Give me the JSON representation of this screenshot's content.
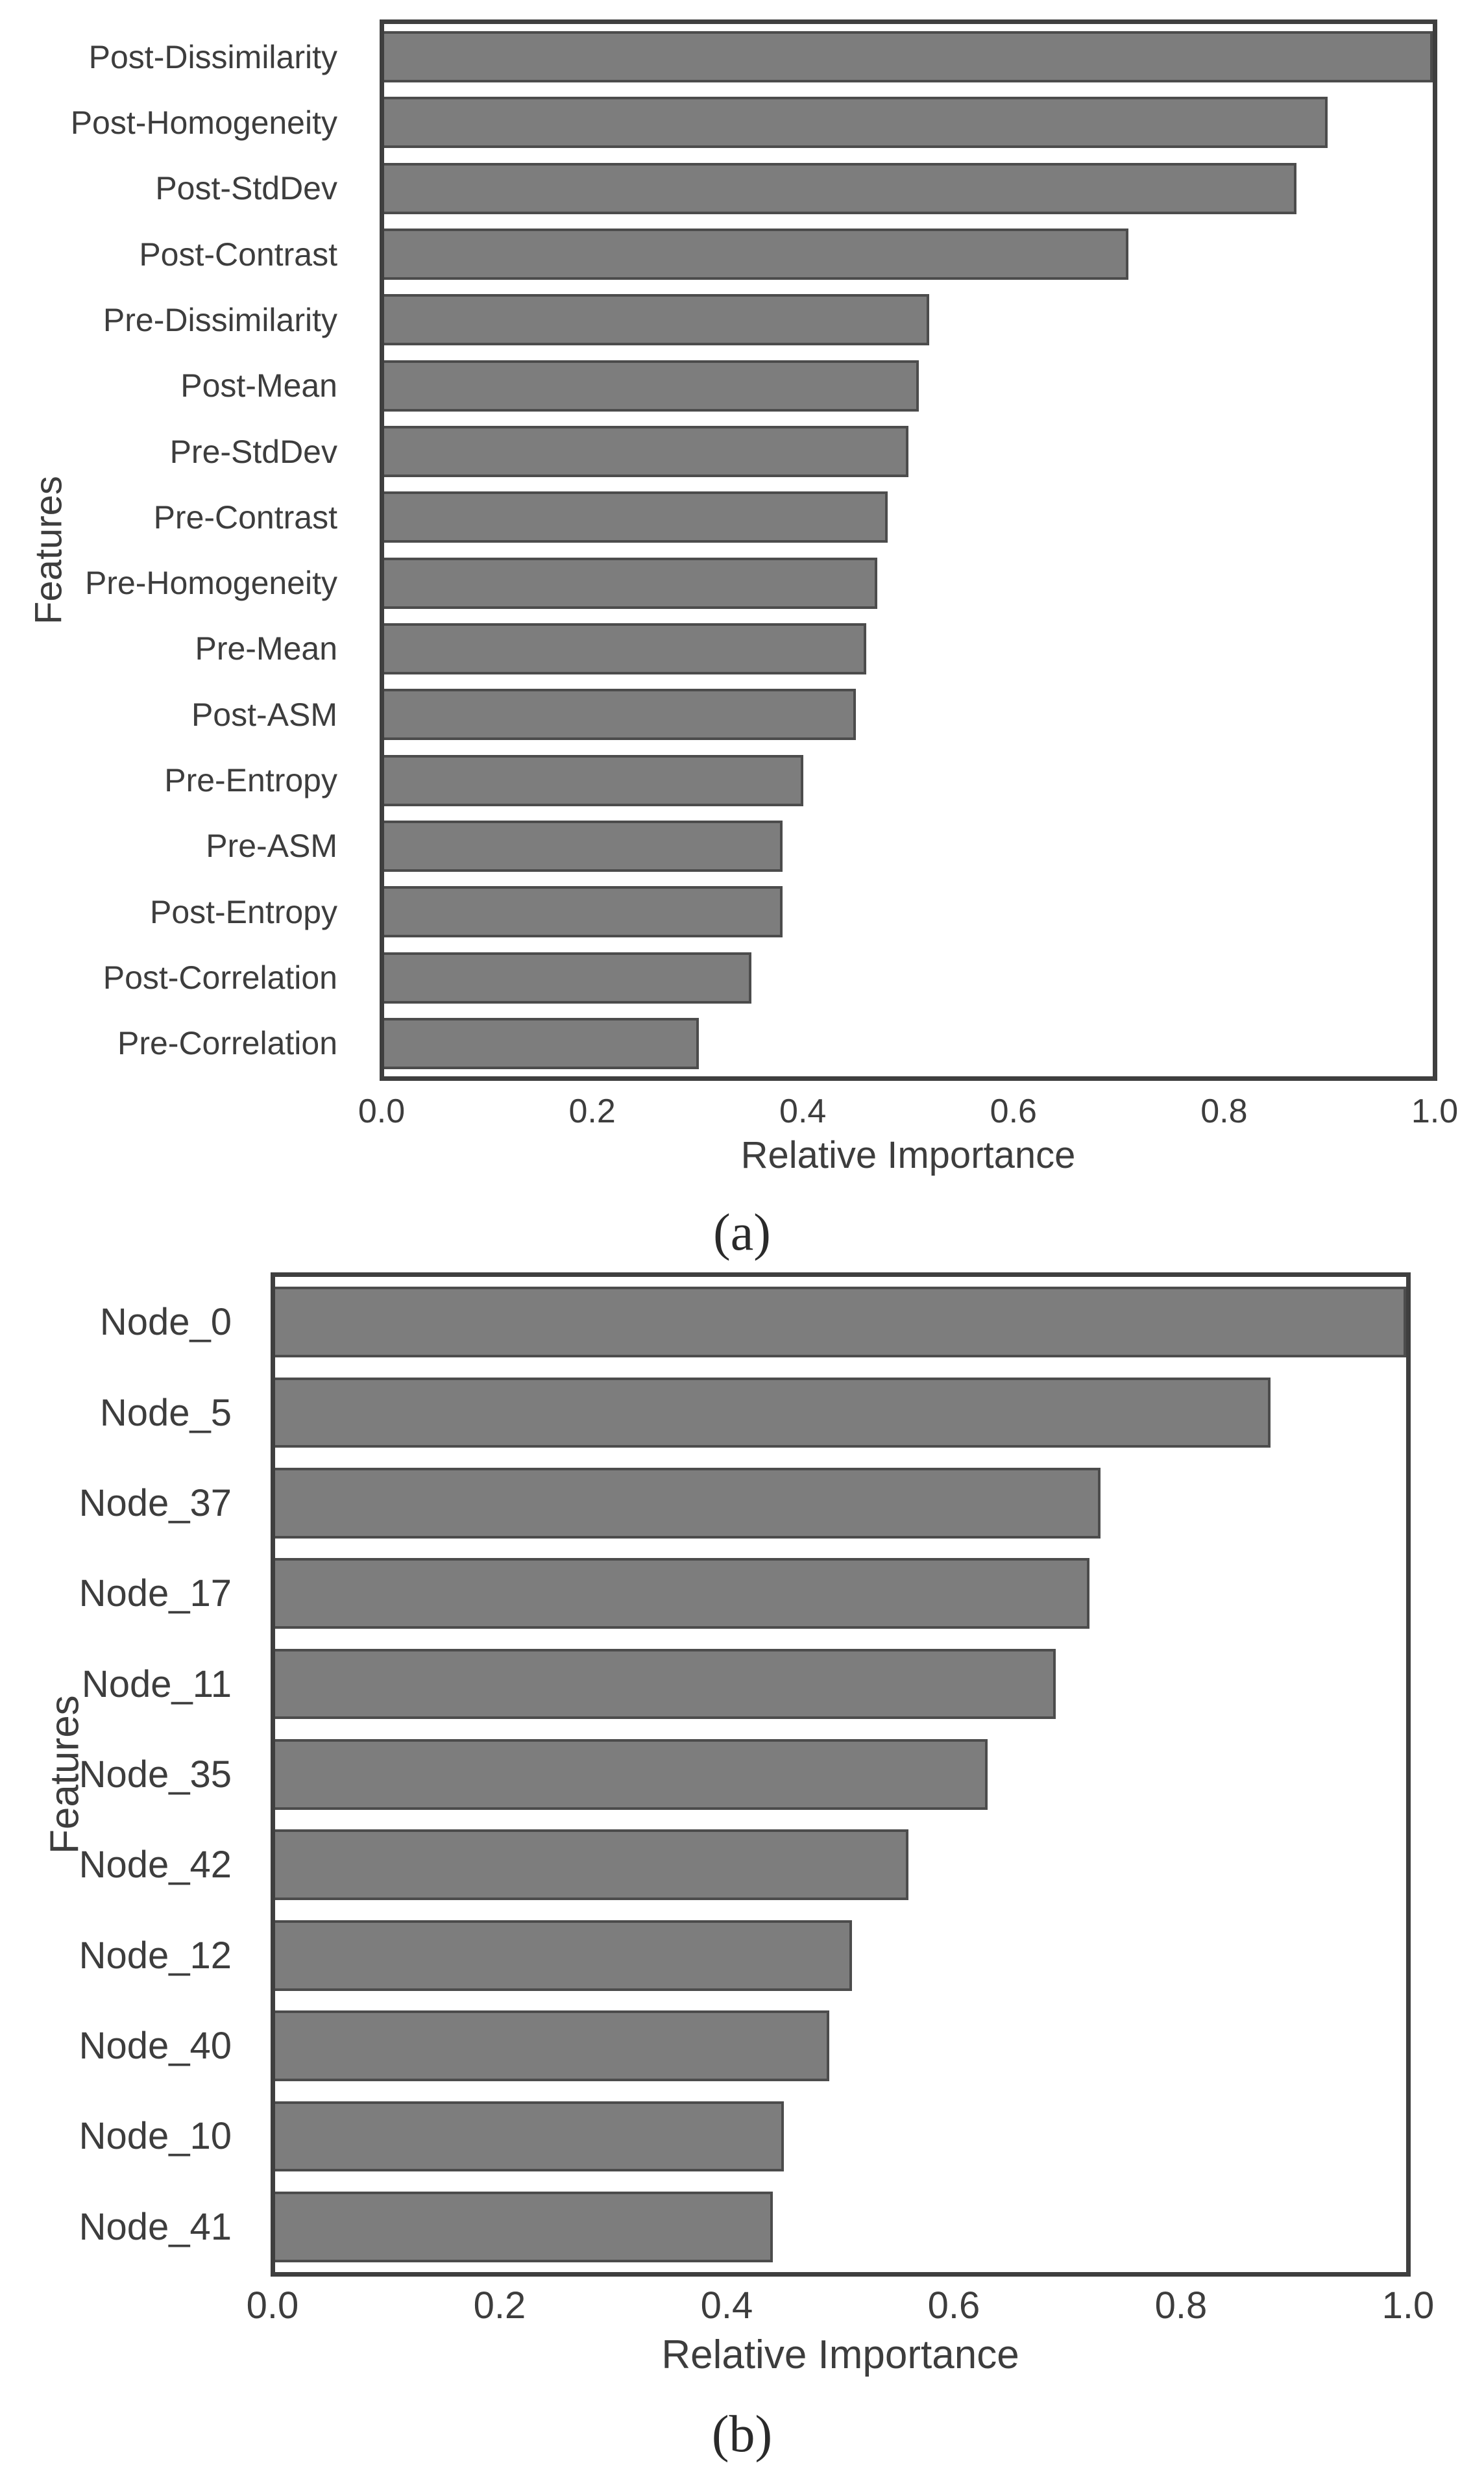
{
  "style": {
    "bar_fill": "#7d7d7d",
    "bar_edge": "#4c4c4c",
    "spine_color": "#3f3f3f",
    "text_color": "#3d3d3d",
    "background": "#ffffff"
  },
  "chart_data": [
    {
      "id": "a",
      "type": "bar",
      "orientation": "horizontal",
      "title": "",
      "xlabel": "Relative Importance",
      "ylabel": "Features",
      "caption": "(a)",
      "xlim": [
        0.0,
        1.0
      ],
      "xtick_labels": [
        "0.0",
        "0.2",
        "0.4",
        "0.6",
        "0.8",
        "1.0"
      ],
      "grid": false,
      "legend_position": "none",
      "categories": [
        "Post-Dissimilarity",
        "Post-Homogeneity",
        "Post-StdDev",
        "Post-Contrast",
        "Pre-Dissimilarity",
        "Post-Mean",
        "Pre-StdDev",
        "Pre-Contrast",
        "Pre-Homogeneity",
        "Pre-Mean",
        "Post-ASM",
        "Pre-Entropy",
        "Pre-ASM",
        "Post-Entropy",
        "Post-Correlation",
        "Pre-Correlation"
      ],
      "values": [
        1.0,
        0.9,
        0.87,
        0.71,
        0.52,
        0.51,
        0.5,
        0.48,
        0.47,
        0.46,
        0.45,
        0.4,
        0.38,
        0.38,
        0.35,
        0.3
      ]
    },
    {
      "id": "b",
      "type": "bar",
      "orientation": "horizontal",
      "title": "",
      "xlabel": "Relative Importance",
      "ylabel": "Features",
      "caption": "(b)",
      "xlim": [
        0.0,
        1.0
      ],
      "xtick_labels": [
        "0.0",
        "0.2",
        "0.4",
        "0.6",
        "0.8",
        "1.0"
      ],
      "grid": false,
      "legend_position": "none",
      "categories": [
        "Node_0",
        "Node_5",
        "Node_37",
        "Node_17",
        "Node_11",
        "Node_35",
        "Node_42",
        "Node_12",
        "Node_40",
        "Node_10",
        "Node_41"
      ],
      "values": [
        1.0,
        0.88,
        0.73,
        0.72,
        0.69,
        0.63,
        0.56,
        0.51,
        0.49,
        0.45,
        0.44
      ]
    }
  ]
}
